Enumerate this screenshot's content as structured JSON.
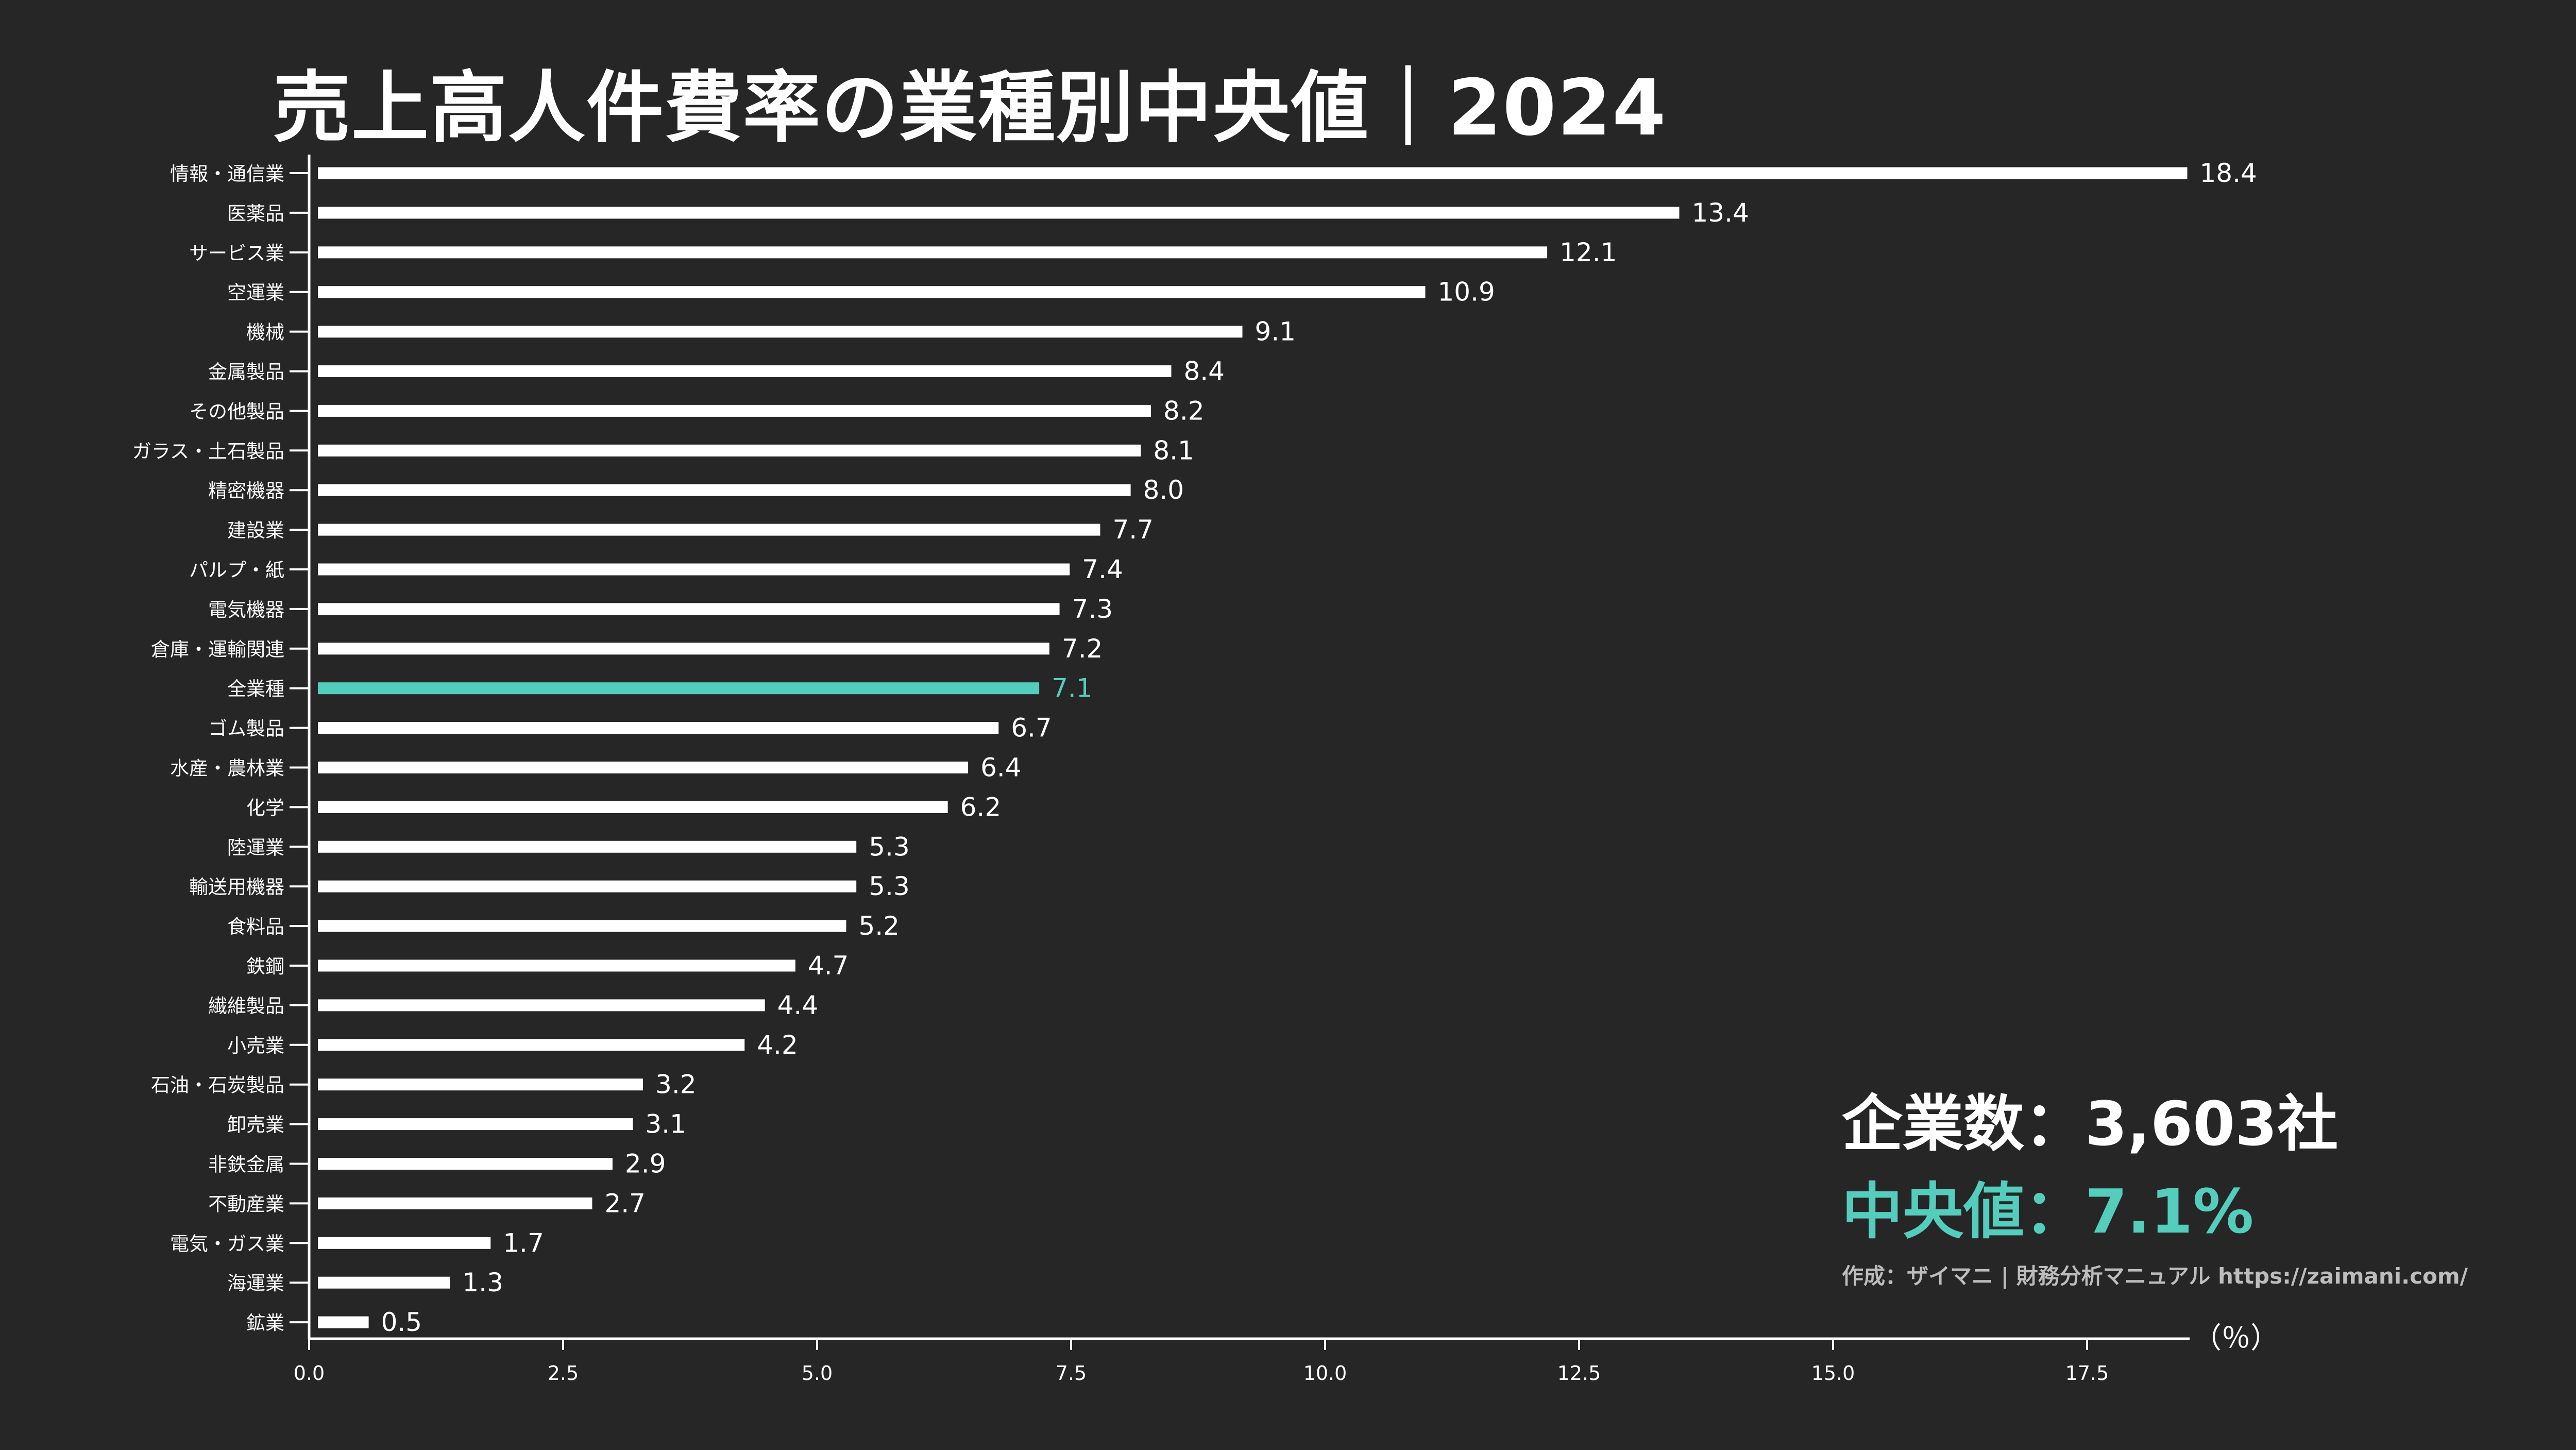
{
  "title": "売上高人件費率の業種別中央値｜2024",
  "colors": {
    "background": "#262626",
    "bar": "#ffffff",
    "highlight": "#55cdbd",
    "text": "#ffffff",
    "credit": "#bdbdbd"
  },
  "info": {
    "company_label": "企業数",
    "company_value": "3,603社",
    "median_label": "中央値",
    "median_value": "7.1%",
    "separator": "：",
    "credit": "作成：ザイマニ | 財務分析マニュアル https://zaimani.com/"
  },
  "chart_data": {
    "type": "bar",
    "orientation": "horizontal",
    "title": "売上高人件費率の業種別中央値｜2024",
    "xlabel": "（％）",
    "ylabel": "",
    "xlim": [
      0,
      18.4
    ],
    "xticks": [
      "0.0",
      "2.5",
      "5.0",
      "7.5",
      "10.0",
      "12.5",
      "15.0",
      "17.5"
    ],
    "xtick_values": [
      0,
      2.5,
      5,
      7.5,
      10,
      12.5,
      15,
      17.5
    ],
    "highlight_category": "全業種",
    "categories": [
      "情報・通信業",
      "医薬品",
      "サービス業",
      "空運業",
      "機械",
      "金属製品",
      "その他製品",
      "ガラス・土石製品",
      "精密機器",
      "建設業",
      "パルプ・紙",
      "電気機器",
      "倉庫・運輸関連",
      "全業種",
      "ゴム製品",
      "水産・農林業",
      "化学",
      "陸運業",
      "輸送用機器",
      "食料品",
      "鉄鋼",
      "繊維製品",
      "小売業",
      "石油・石炭製品",
      "卸売業",
      "非鉄金属",
      "不動産業",
      "電気・ガス業",
      "海運業",
      "鉱業"
    ],
    "values": [
      18.4,
      13.4,
      12.1,
      10.9,
      9.1,
      8.4,
      8.2,
      8.1,
      8.0,
      7.7,
      7.4,
      7.3,
      7.2,
      7.1,
      6.7,
      6.4,
      6.2,
      5.3,
      5.3,
      5.2,
      4.7,
      4.4,
      4.2,
      3.2,
      3.1,
      2.9,
      2.7,
      1.7,
      1.3,
      0.5
    ],
    "value_labels": [
      "18.4",
      "13.4",
      "12.1",
      "10.9",
      "9.1",
      "8.4",
      "8.2",
      "8.1",
      "8.0",
      "7.7",
      "7.4",
      "7.3",
      "7.2",
      "7.1",
      "6.7",
      "6.4",
      "6.2",
      "5.3",
      "5.3",
      "5.2",
      "4.7",
      "4.4",
      "4.2",
      "3.2",
      "3.1",
      "2.9",
      "2.7",
      "1.7",
      "1.3",
      "0.5"
    ]
  }
}
